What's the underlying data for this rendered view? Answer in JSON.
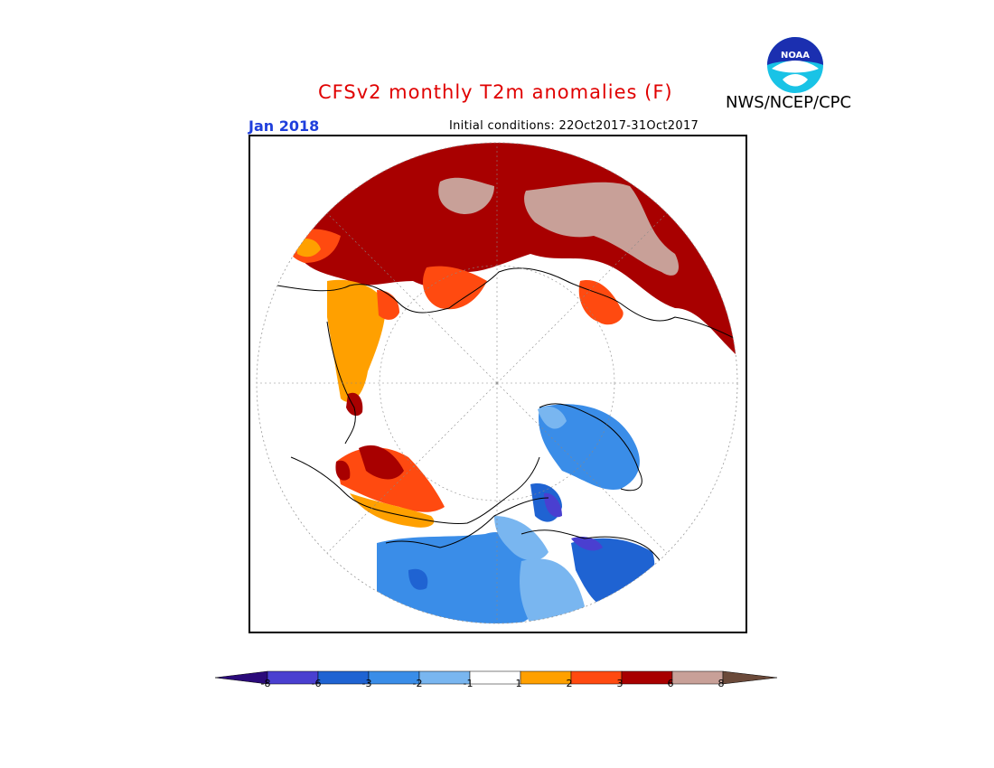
{
  "title": "CFSv2 monthly T2m anomalies (F)",
  "org": "NWS/NCEP/CPC",
  "logo_text": "NOAA",
  "target_month": "Jan 2018",
  "initial_conditions": "Initial conditions: 22Oct2017-31Oct2017",
  "colorbar": {
    "colors": [
      "#2b0a7a",
      "#4a3fd0",
      "#1f63d2",
      "#3a8de8",
      "#79b6f0",
      "#ffffff",
      "#ffa000",
      "#ff4a10",
      "#a80000",
      "#c8a098",
      "#6b4a3a"
    ],
    "labels": [
      "-8",
      "-6",
      "-3",
      "-2",
      "-1",
      "1",
      "2",
      "3",
      "6",
      "8"
    ]
  }
}
